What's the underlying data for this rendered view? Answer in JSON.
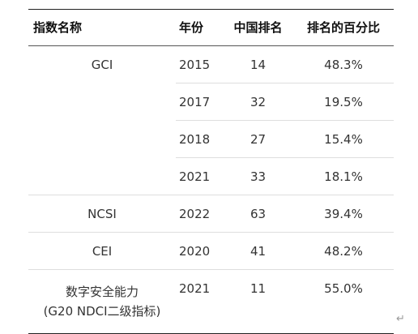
{
  "table": {
    "headers": [
      "指数名称",
      "年份",
      "中国排名",
      "排名的百分比"
    ],
    "rows": [
      {
        "name": "GCI",
        "year": "2015",
        "rank": "14",
        "pct": "48.3%"
      },
      {
        "name": "",
        "year": "2017",
        "rank": "32",
        "pct": "19.5%"
      },
      {
        "name": "",
        "year": "2018",
        "rank": "27",
        "pct": "15.4%"
      },
      {
        "name": "",
        "year": "2021",
        "rank": "33",
        "pct": "18.1%"
      },
      {
        "name": "NCSI",
        "year": "2022",
        "rank": "63",
        "pct": "39.4%"
      },
      {
        "name": "CEI",
        "year": "2020",
        "rank": "41",
        "pct": "48.2%"
      },
      {
        "name": "数字安全能力",
        "name_line2": "(G20 NDCI二级指标)",
        "year": "2021",
        "rank": "11",
        "pct": "55.0%"
      }
    ]
  },
  "paragraph_mark": "↵"
}
